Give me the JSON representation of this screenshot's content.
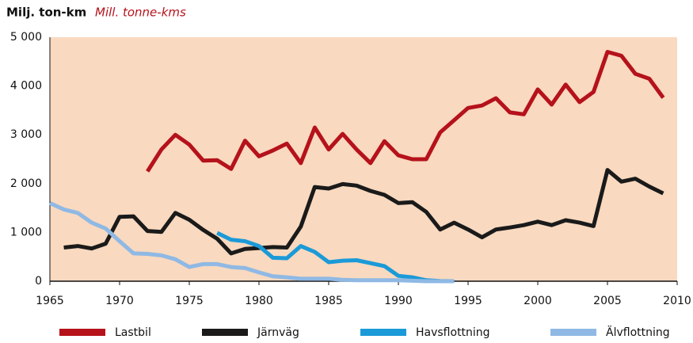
{
  "chart_data": {
    "type": "line",
    "title": "Milj. ton-km",
    "subtitle": "Mill. tonne-kms",
    "x": [
      1965,
      1966,
      1967,
      1968,
      1969,
      1970,
      1971,
      1972,
      1973,
      1974,
      1975,
      1976,
      1977,
      1978,
      1979,
      1980,
      1981,
      1982,
      1983,
      1984,
      1985,
      1986,
      1987,
      1988,
      1989,
      1990,
      1991,
      1992,
      1993,
      1994,
      1995,
      1996,
      1997,
      1998,
      1999,
      2000,
      2001,
      2002,
      2003,
      2004,
      2005,
      2006,
      2007,
      2008,
      2009
    ],
    "xlim": [
      1965,
      2010
    ],
    "xticks": [
      1965,
      1970,
      1975,
      1980,
      1985,
      1990,
      1995,
      2000,
      2005,
      2010
    ],
    "ylim": [
      0,
      5000
    ],
    "yticks": [
      0,
      {
        "value": 1000,
        "label": "1 000"
      },
      {
        "value": 2000,
        "label": "2 000"
      },
      {
        "value": 3000,
        "label": "3 000"
      },
      {
        "value": 4000,
        "label": "4 000"
      },
      {
        "value": 5000,
        "label": "5 000"
      }
    ],
    "grid": false,
    "legend": "bottom",
    "series": [
      {
        "name": "Lastbil",
        "color": "#b5121b",
        "values": [
          null,
          null,
          null,
          null,
          null,
          null,
          null,
          2250,
          2700,
          3000,
          2800,
          2470,
          2480,
          2300,
          2880,
          2560,
          2680,
          2820,
          2420,
          3150,
          2700,
          3020,
          2700,
          2420,
          2870,
          2580,
          2500,
          2500,
          3050,
          3300,
          3550,
          3600,
          3750,
          3460,
          3420,
          3930,
          3620,
          4030,
          3670,
          3880,
          4700,
          4620,
          4250,
          4150,
          3760
        ]
      },
      {
        "name": "Järnväg",
        "color": "#1a1a1a",
        "values": [
          null,
          690,
          720,
          670,
          770,
          1320,
          1330,
          1030,
          1010,
          1400,
          1260,
          1050,
          870,
          570,
          660,
          680,
          700,
          690,
          1120,
          1930,
          1900,
          1990,
          1960,
          1850,
          1770,
          1600,
          1620,
          1420,
          1060,
          1200,
          1060,
          900,
          1060,
          1100,
          1150,
          1220,
          1150,
          1250,
          1200,
          1130,
          2280,
          2040,
          2100,
          1940,
          1800
        ]
      },
      {
        "name": "Havsflottning",
        "color": "#1b9ad8",
        "values": [
          null,
          null,
          null,
          null,
          null,
          null,
          null,
          null,
          null,
          null,
          null,
          null,
          990,
          850,
          820,
          720,
          480,
          470,
          720,
          600,
          390,
          420,
          430,
          370,
          310,
          110,
          80,
          20,
          5,
          0,
          null,
          null,
          null,
          null,
          null,
          null,
          null,
          null,
          null,
          null,
          null,
          null,
          null,
          null,
          null
        ]
      },
      {
        "name": "Älvflottning",
        "color": "#8fb9e4",
        "values": [
          1600,
          1470,
          1400,
          1200,
          1080,
          820,
          570,
          560,
          530,
          450,
          290,
          350,
          350,
          290,
          270,
          180,
          100,
          80,
          50,
          50,
          50,
          30,
          20,
          20,
          20,
          20,
          10,
          0,
          0,
          0,
          null,
          null,
          null,
          null,
          null,
          null,
          null,
          null,
          null,
          null,
          null,
          null,
          null,
          null,
          null
        ]
      }
    ]
  }
}
